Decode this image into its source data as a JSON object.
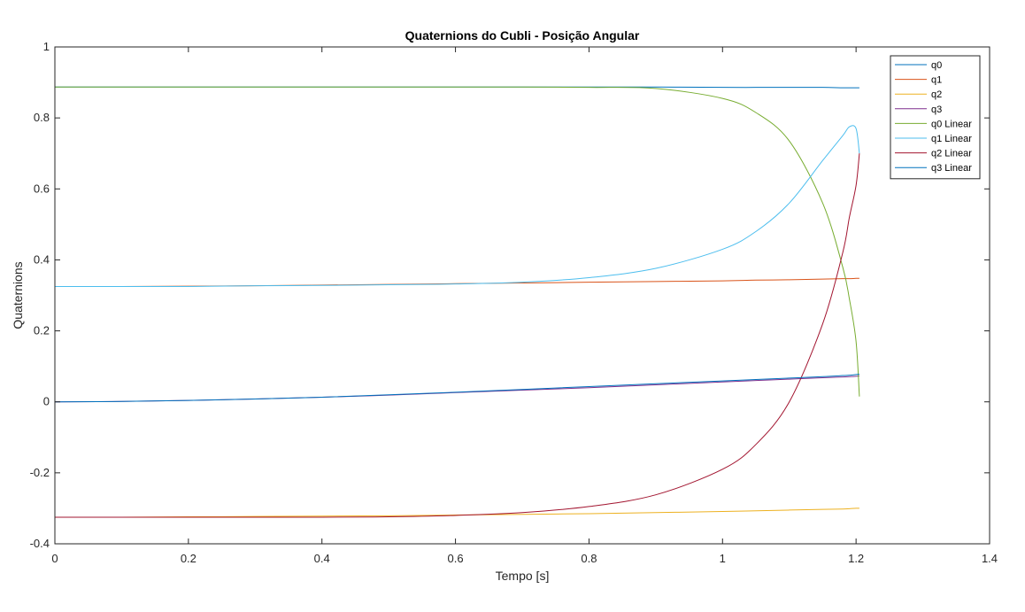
{
  "chart_data": {
    "type": "line",
    "title": "Quaternions do Cubli - Posição Angular",
    "xlabel": "Tempo [s]",
    "ylabel": "Quaternions",
    "xlim": [
      0,
      1.4
    ],
    "ylim": [
      -0.4,
      1
    ],
    "xticks": [
      "0",
      "0.2",
      "0.4",
      "0.6",
      "0.8",
      "1",
      "1.2",
      "1.4"
    ],
    "yticks": [
      "-0.4",
      "-0.2",
      "0",
      "0.2",
      "0.4",
      "0.6",
      "0.8",
      "1"
    ],
    "grid": false,
    "legend_position": "top-right",
    "x": [
      0,
      0.1,
      0.2,
      0.3,
      0.4,
      0.5,
      0.6,
      0.7,
      0.8,
      0.9,
      1.0,
      1.05,
      1.1,
      1.15,
      1.18,
      1.19,
      1.2,
      1.205
    ],
    "series": [
      {
        "name": "q0",
        "color": "#0072BD",
        "values": [
          0.887,
          0.887,
          0.887,
          0.887,
          0.887,
          0.887,
          0.887,
          0.887,
          0.887,
          0.887,
          0.886,
          0.886,
          0.886,
          0.886,
          0.885,
          0.885,
          0.885,
          0.885
        ]
      },
      {
        "name": "q1",
        "color": "#D95319",
        "values": [
          0.325,
          0.325,
          0.326,
          0.327,
          0.329,
          0.331,
          0.333,
          0.335,
          0.337,
          0.339,
          0.341,
          0.343,
          0.344,
          0.346,
          0.347,
          0.347,
          0.348,
          0.348
        ]
      },
      {
        "name": "q2",
        "color": "#EDB120",
        "values": [
          -0.325,
          -0.325,
          -0.324,
          -0.323,
          -0.322,
          -0.321,
          -0.319,
          -0.317,
          -0.315,
          -0.312,
          -0.309,
          -0.307,
          -0.305,
          -0.303,
          -0.302,
          -0.301,
          -0.3,
          -0.3
        ]
      },
      {
        "name": "q3",
        "color": "#7E2F8E",
        "values": [
          0.0,
          0.001,
          0.004,
          0.008,
          0.013,
          0.019,
          0.026,
          0.033,
          0.04,
          0.048,
          0.056,
          0.06,
          0.064,
          0.068,
          0.07,
          0.071,
          0.072,
          0.073
        ]
      },
      {
        "name": "q0 Linear",
        "color": "#77AC30",
        "values": [
          0.887,
          0.887,
          0.887,
          0.887,
          0.887,
          0.887,
          0.887,
          0.887,
          0.886,
          0.883,
          0.855,
          0.815,
          0.735,
          0.56,
          0.38,
          0.29,
          0.17,
          0.015
        ]
      },
      {
        "name": "q1 Linear",
        "color": "#4DBEEE",
        "values": [
          0.325,
          0.325,
          0.325,
          0.327,
          0.328,
          0.33,
          0.332,
          0.337,
          0.35,
          0.376,
          0.43,
          0.48,
          0.56,
          0.68,
          0.75,
          0.775,
          0.77,
          0.7
        ]
      },
      {
        "name": "q2 Linear",
        "color": "#A2142F",
        "values": [
          -0.325,
          -0.325,
          -0.325,
          -0.325,
          -0.325,
          -0.324,
          -0.32,
          -0.312,
          -0.295,
          -0.262,
          -0.19,
          -0.12,
          0.0,
          0.22,
          0.42,
          0.52,
          0.61,
          0.7
        ]
      },
      {
        "name": "q3 Linear",
        "color": "#0072BD",
        "values": [
          0.0,
          0.001,
          0.004,
          0.008,
          0.013,
          0.02,
          0.027,
          0.035,
          0.043,
          0.051,
          0.059,
          0.063,
          0.067,
          0.071,
          0.074,
          0.075,
          0.077,
          0.078
        ]
      }
    ]
  }
}
